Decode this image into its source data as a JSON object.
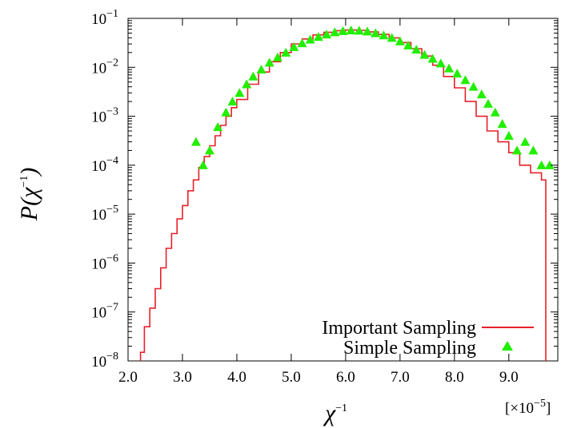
{
  "chart_data": {
    "type": "line",
    "title": "",
    "xlabel_base": "χ",
    "xlabel_sup": "−1",
    "ylabel_prefix": "P(",
    "ylabel_base": "χ",
    "ylabel_sup": "−1",
    "ylabel_suffix": ")",
    "x_scale_prefix": "[×10",
    "x_scale_exp": "−5",
    "x_scale_suffix": "]",
    "xlim": [
      2.0,
      9.9
    ],
    "ylim": [
      1e-08,
      0.1
    ],
    "y_scale": "log",
    "x_ticks": [
      "2.0",
      "3.0",
      "4.0",
      "5.0",
      "6.0",
      "7.0",
      "8.0",
      "9.0"
    ],
    "x_tick_values": [
      2.0,
      3.0,
      4.0,
      5.0,
      6.0,
      7.0,
      8.0,
      9.0
    ],
    "y_ticks": [
      {
        "base": "10",
        "exp": "−8"
      },
      {
        "base": "10",
        "exp": "−7"
      },
      {
        "base": "10",
        "exp": "−6"
      },
      {
        "base": "10",
        "exp": "−5"
      },
      {
        "base": "10",
        "exp": "−4"
      },
      {
        "base": "10",
        "exp": "−3"
      },
      {
        "base": "10",
        "exp": "−2"
      },
      {
        "base": "10",
        "exp": "−1"
      }
    ],
    "legend_position": "bottom-right",
    "series": [
      {
        "name": "Important Sampling",
        "style": "step",
        "color": "#e8202a",
        "x": [
          2.23,
          2.3,
          2.4,
          2.5,
          2.6,
          2.7,
          2.8,
          2.9,
          3.0,
          3.1,
          3.2,
          3.3,
          3.4,
          3.5,
          3.6,
          3.7,
          3.8,
          3.9,
          4.0,
          4.2,
          4.4,
          4.6,
          4.8,
          5.0,
          5.2,
          5.4,
          5.6,
          5.8,
          6.0,
          6.2,
          6.4,
          6.6,
          6.8,
          7.0,
          7.2,
          7.4,
          7.6,
          7.8,
          8.0,
          8.2,
          8.4,
          8.6,
          8.8,
          9.0,
          9.2,
          9.4,
          9.6,
          9.68
        ],
        "y": [
          1.5e-08,
          5e-08,
          1.2e-07,
          3e-07,
          8e-07,
          2e-06,
          4e-06,
          8e-06,
          1.5e-05,
          3e-05,
          5e-05,
          9e-05,
          0.00015,
          0.00025,
          0.0004,
          0.00065,
          0.001,
          0.0015,
          0.0022,
          0.0045,
          0.008,
          0.013,
          0.02,
          0.03,
          0.038,
          0.046,
          0.052,
          0.056,
          0.058,
          0.057,
          0.053,
          0.047,
          0.04,
          0.032,
          0.024,
          0.017,
          0.011,
          0.0065,
          0.0038,
          0.002,
          0.001,
          0.0005,
          0.0003,
          0.00018,
          0.0001,
          7e-05,
          5e-05,
          4e-05
        ]
      },
      {
        "name": "Simple Sampling",
        "style": "markers",
        "marker": "triangle",
        "color": "#22ee00",
        "x": [
          3.25,
          3.38,
          3.5,
          3.65,
          3.8,
          3.92,
          4.05,
          4.18,
          4.3,
          4.45,
          4.6,
          4.75,
          4.9,
          5.05,
          5.2,
          5.35,
          5.5,
          5.65,
          5.8,
          5.95,
          6.1,
          6.25,
          6.4,
          6.55,
          6.7,
          6.85,
          7.0,
          7.15,
          7.3,
          7.45,
          7.6,
          7.75,
          7.9,
          8.05,
          8.2,
          8.35,
          8.5,
          8.62,
          8.75,
          8.88,
          9.0,
          9.15,
          9.3,
          9.45,
          9.6,
          9.75
        ],
        "y": [
          0.0003,
          0.0001,
          0.0002,
          0.0006,
          0.0012,
          0.002,
          0.003,
          0.0045,
          0.0065,
          0.009,
          0.0125,
          0.016,
          0.02,
          0.026,
          0.031,
          0.037,
          0.042,
          0.047,
          0.052,
          0.055,
          0.057,
          0.056,
          0.054,
          0.05,
          0.045,
          0.04,
          0.034,
          0.028,
          0.023,
          0.018,
          0.015,
          0.012,
          0.0095,
          0.0075,
          0.0055,
          0.004,
          0.0028,
          0.0018,
          0.0012,
          0.0007,
          0.0004,
          0.0002,
          0.0003,
          0.0002,
          0.0001,
          0.0001
        ]
      }
    ]
  }
}
